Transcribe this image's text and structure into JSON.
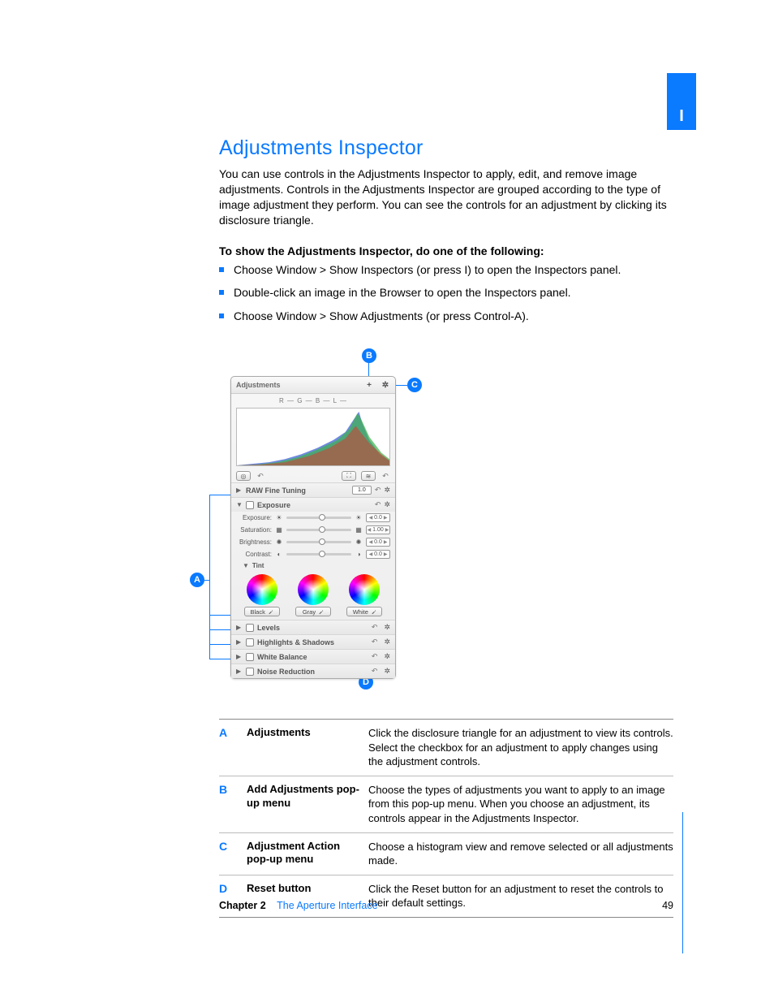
{
  "page": {
    "tab_label": "I",
    "chapter_label": "Chapter 2",
    "chapter_name": "The Aperture Interface",
    "page_number": "49"
  },
  "heading": "Adjustments Inspector",
  "intro": "You can use controls in the Adjustments Inspector to apply, edit, and remove image adjustments. Controls in the Adjustments Inspector are grouped according to the type of image adjustment they perform. You can see the controls for an adjustment by clicking its disclosure triangle.",
  "lead_in": "To show the Adjustments Inspector, do one of the following:",
  "bullets": [
    "Choose Window > Show Inspectors (or press I) to open the Inspectors panel.",
    "Double-click an image in the Browser to open the Inspectors panel.",
    "Choose Window > Show Adjustments (or press Control-A)."
  ],
  "callouts": {
    "A": "A",
    "B": "B",
    "C": "C",
    "D": "D"
  },
  "panel": {
    "title": "Adjustments",
    "add_icon": "+",
    "gear_icon": "✲",
    "channels": "R  —     G  —     B  —     L  —",
    "histogram": {
      "bg": "#ffffff",
      "colors": {
        "r": "#d53a2f",
        "g": "#3db24a",
        "b": "#3d62d6"
      }
    },
    "hist_toolbar": {
      "target": "◎",
      "undo1": "↶",
      "crop": "⛶",
      "straighten": "≋",
      "undo2": "↶"
    },
    "raw_row": {
      "label": "RAW Fine Tuning",
      "value": "1.0",
      "reset": "↶",
      "gear": "✲"
    },
    "exposure_section": {
      "label": "Exposure",
      "reset": "↶",
      "gear": "✲",
      "sliders": [
        {
          "label": "Exposure:",
          "li": "☀",
          "ri": "☀",
          "value": "0.0",
          "thumb": 50
        },
        {
          "label": "Saturation:",
          "li": "▦",
          "ri": "▦",
          "value": "1.00",
          "thumb": 50
        },
        {
          "label": "Brightness:",
          "li": "✺",
          "ri": "✺",
          "value": "0.0",
          "thumb": 50
        },
        {
          "label": "Contrast:",
          "li": "◐",
          "ri": "◑",
          "value": "0.0",
          "thumb": 50
        }
      ],
      "tint_label": "Tint",
      "wheel_labels": [
        "Black",
        "Gray",
        "White"
      ]
    },
    "collapsed": [
      {
        "label": "Levels"
      },
      {
        "label": "Highlights & Shadows"
      },
      {
        "label": "White Balance"
      },
      {
        "label": "Noise Reduction"
      }
    ]
  },
  "desc_table": [
    {
      "letter": "A",
      "term": "Adjustments",
      "def": "Click the disclosure triangle for an adjustment to view its controls. Select the checkbox for an adjustment to apply changes using the adjustment controls."
    },
    {
      "letter": "B",
      "term": "Add Adjustments pop-up menu",
      "def": "Choose the types of adjustments you want to apply to an image from this pop-up menu. When you choose an adjustment, its controls appear in the Adjustments Inspector."
    },
    {
      "letter": "C",
      "term": "Adjustment Action pop-up menu",
      "def": "Choose a histogram view and remove selected or all adjustments made."
    },
    {
      "letter": "D",
      "term": "Reset button",
      "def": "Click the Reset button for an adjustment to reset the controls to their default settings."
    }
  ],
  "colors": {
    "accent": "#0a7aff"
  }
}
